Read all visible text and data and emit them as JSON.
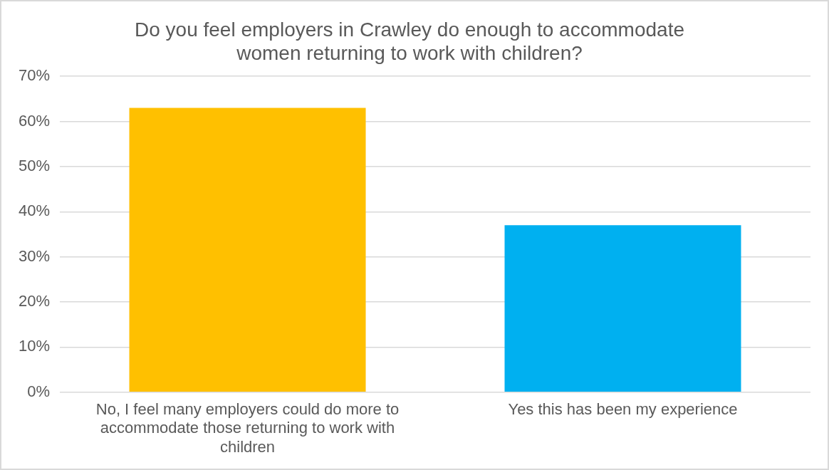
{
  "chart_data": {
    "type": "bar",
    "title": "Do you feel employers in Crawley do enough to accommodate women returning to work with children?",
    "categories": [
      "No, I feel many employers could do more to accommodate those returning to work with children",
      "Yes this has been my experience"
    ],
    "values": [
      63,
      37
    ],
    "colors": [
      "#ffc000",
      "#00b0f0"
    ],
    "ylim": [
      0,
      70
    ],
    "yticks": [
      {
        "value": 0,
        "label": "0%"
      },
      {
        "value": 10,
        "label": "10%"
      },
      {
        "value": 20,
        "label": "20%"
      },
      {
        "value": 30,
        "label": "30%"
      },
      {
        "value": 40,
        "label": "40%"
      },
      {
        "value": 50,
        "label": "50%"
      },
      {
        "value": 60,
        "label": "60%"
      },
      {
        "value": 70,
        "label": "70%"
      }
    ],
    "grid": "y",
    "legend": false
  }
}
